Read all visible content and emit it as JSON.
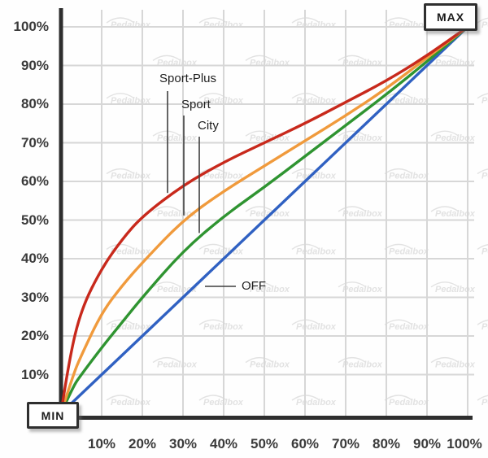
{
  "watermark": {
    "text": "Pedalbox"
  },
  "annotations": {
    "min_label": "MIN",
    "max_label": "MAX"
  },
  "colors": {
    "axis": "#2e2e2e",
    "grid": "#d7d7d7",
    "tick_text": "#3b3b3b",
    "leader_line": "#3f3f3f",
    "watermark": "#e2e2e2",
    "sport_plus": "#c8291c",
    "sport": "#f09a3c",
    "city": "#2f9431",
    "off": "#3061c2"
  },
  "chart_data": {
    "type": "line",
    "title": "",
    "xlabel": "",
    "ylabel": "",
    "grid": true,
    "x_axis": {
      "unit": "%",
      "range": [
        0,
        100
      ],
      "ticks": [
        10,
        20,
        30,
        40,
        50,
        60,
        70,
        80,
        90,
        100
      ]
    },
    "y_axis": {
      "unit": "%",
      "range": [
        0,
        100
      ],
      "ticks": [
        10,
        20,
        30,
        40,
        50,
        60,
        70,
        80,
        90,
        100
      ]
    },
    "corner_labels": {
      "origin": "MIN",
      "end": "MAX"
    },
    "series": [
      {
        "name": "Sport-Plus",
        "color": "#c8291c",
        "points": [
          [
            0,
            0
          ],
          [
            2,
            14
          ],
          [
            5,
            27
          ],
          [
            10,
            37.5
          ],
          [
            15,
            45
          ],
          [
            20,
            51
          ],
          [
            30,
            59
          ],
          [
            40,
            65
          ],
          [
            50,
            70
          ],
          [
            60,
            75
          ],
          [
            70,
            80.5
          ],
          [
            80,
            86
          ],
          [
            90,
            92.5
          ],
          [
            100,
            100
          ]
        ]
      },
      {
        "name": "Sport",
        "color": "#f09a3c",
        "points": [
          [
            0,
            0
          ],
          [
            3,
            10
          ],
          [
            5,
            15
          ],
          [
            10,
            26
          ],
          [
            15,
            33
          ],
          [
            20,
            39
          ],
          [
            30,
            50
          ],
          [
            40,
            57.5
          ],
          [
            50,
            64
          ],
          [
            60,
            70.5
          ],
          [
            70,
            77
          ],
          [
            80,
            84
          ],
          [
            90,
            92
          ],
          [
            100,
            100
          ]
        ]
      },
      {
        "name": "City",
        "color": "#2f9431",
        "points": [
          [
            0,
            0
          ],
          [
            3,
            7
          ],
          [
            5,
            10
          ],
          [
            10,
            17
          ],
          [
            15,
            23.5
          ],
          [
            20,
            30
          ],
          [
            30,
            42
          ],
          [
            40,
            51
          ],
          [
            50,
            58.5
          ],
          [
            60,
            66.5
          ],
          [
            70,
            74.5
          ],
          [
            80,
            82.5
          ],
          [
            90,
            91
          ],
          [
            100,
            100
          ]
        ]
      },
      {
        "name": "OFF",
        "color": "#3061c2",
        "points": [
          [
            0,
            0
          ],
          [
            100,
            100
          ]
        ]
      }
    ]
  }
}
